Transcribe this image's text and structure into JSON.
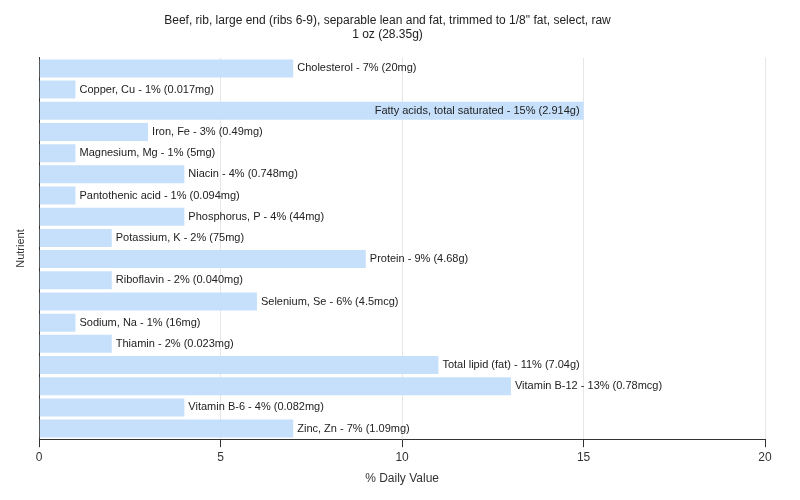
{
  "chart_data": {
    "type": "bar",
    "orientation": "horizontal",
    "title": [
      "Beef, rib, large end (ribs 6-9), separable lean and fat, trimmed to 1/8\" fat, select, raw",
      "1 oz (28.35g)"
    ],
    "x_label": "% Daily Value",
    "y_label": "Nutrient",
    "categories": [
      "Cholesterol - 7% (20mg)",
      "Copper, Cu - 1% (0.017mg)",
      "Fatty acids, total saturated - 15% (2.914g)",
      "Iron, Fe - 3% (0.49mg)",
      "Magnesium, Mg - 1% (5mg)",
      "Niacin - 4% (0.748mg)",
      "Pantothenic acid - 1% (0.094mg)",
      "Phosphorus, P - 4% (44mg)",
      "Potassium, K - 2% (75mg)",
      "Protein - 9% (4.68g)",
      "Riboflavin - 2% (0.040mg)",
      "Selenium, Se - 6% (4.5mcg)",
      "Sodium, Na - 1% (16mg)",
      "Thiamin - 2% (0.023mg)",
      "Total lipid (fat) - 11% (7.04g)",
      "Vitamin B-12 - 13% (0.78mcg)",
      "Vitamin B-6 - 4% (0.082mg)",
      "Zinc, Zn - 7% (1.09mg)"
    ],
    "values": [
      7,
      1,
      15,
      3,
      1,
      4,
      1,
      4,
      2,
      9,
      2,
      6,
      1,
      2,
      11,
      13,
      4,
      7
    ],
    "color": "#c6e0fb",
    "xlim": [
      0,
      20
    ],
    "xticks": [
      0,
      5,
      10,
      15,
      20
    ],
    "grid": true,
    "tick_labels": "x"
  }
}
